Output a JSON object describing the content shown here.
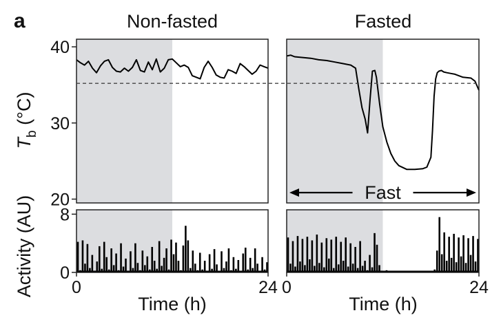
{
  "figure": {
    "panel_letter": "a",
    "colors": {
      "night_shade": "#dcdde0",
      "trace": "#000000",
      "frame": "#222222",
      "threshold": "#444444"
    }
  },
  "chart_data": [
    {
      "id": "tb-nonfasted",
      "type": "line",
      "title": "Non-fasted",
      "ylabel": "Tb (°C)",
      "ylabel_symbol": "T",
      "ylabel_subscript": "b",
      "ylabel_unit": "(°C)",
      "ylim": [
        19.5,
        41
      ],
      "xlim": [
        0,
        24
      ],
      "yticks": [
        20,
        30,
        40
      ],
      "ytick_labels": [
        "20",
        "30",
        "40"
      ],
      "threshold": 35.2,
      "shaded_x": [
        0,
        12
      ],
      "x": [
        0,
        0.5,
        1,
        1.5,
        2,
        2.5,
        3,
        3.5,
        4,
        4.5,
        5,
        5.5,
        6,
        6.5,
        7,
        7.5,
        8,
        8.5,
        9,
        9.5,
        10,
        10.5,
        11,
        11.5,
        12,
        12.5,
        13,
        13.5,
        14,
        14.5,
        15,
        15.5,
        16,
        16.5,
        17,
        17.5,
        18,
        18.5,
        19,
        19.5,
        20,
        20.5,
        21,
        21.5,
        22,
        22.5,
        23,
        23.5,
        24
      ],
      "y": [
        38.3,
        37.9,
        37.6,
        38.1,
        37.2,
        36.6,
        37.5,
        38.1,
        38.3,
        37.3,
        36.8,
        36.7,
        37.2,
        36.8,
        37.3,
        38.3,
        36.9,
        36.7,
        38.0,
        37.0,
        38.4,
        36.7,
        37.2,
        38.3,
        38.4,
        37.9,
        37.4,
        37.6,
        37.3,
        36.2,
        36.0,
        35.8,
        37.3,
        38.1,
        37.3,
        36.3,
        36.0,
        35.9,
        37.0,
        36.8,
        36.5,
        37.8,
        37.4,
        36.9,
        36.4,
        36.8,
        37.6,
        37.4,
        37.2
      ]
    },
    {
      "id": "tb-fasted",
      "type": "line",
      "title": "Fasted",
      "ylim": [
        19.5,
        41
      ],
      "xlim": [
        0,
        24
      ],
      "threshold": 35.2,
      "shaded_x": [
        0,
        12
      ],
      "annotation": "Fast",
      "annotation_span": [
        0,
        24
      ],
      "x": [
        0,
        0.5,
        1,
        2,
        3,
        4,
        5,
        6,
        7,
        8,
        8.6,
        9,
        9.4,
        9.8,
        10.1,
        10.4,
        10.7,
        11,
        11.2,
        11.6,
        12,
        12.5,
        13,
        13.5,
        14,
        15,
        16,
        17,
        17.5,
        18,
        18.2,
        18.4,
        18.6,
        18.8,
        19,
        19.3,
        19.6,
        20,
        20.5,
        21,
        22,
        23,
        23.5,
        24
      ],
      "y": [
        38.8,
        38.9,
        38.7,
        38.6,
        38.5,
        38.3,
        38.2,
        38.0,
        37.8,
        37.6,
        37.2,
        34.5,
        32.0,
        30.5,
        28.7,
        33.0,
        36.8,
        36.9,
        36.0,
        32.5,
        29.5,
        27.5,
        26.0,
        25.0,
        24.4,
        23.9,
        23.9,
        24.0,
        24.2,
        25.5,
        29.0,
        33.5,
        35.8,
        36.6,
        36.8,
        36.9,
        36.7,
        36.6,
        36.5,
        36.4,
        36.0,
        35.9,
        35.5,
        34.3
      ]
    },
    {
      "id": "activity-nonfasted",
      "type": "bar",
      "ylabel": "Activity (AU)",
      "ylim": [
        0,
        8.6
      ],
      "xlim": [
        0,
        24
      ],
      "yticks": [
        0,
        8
      ],
      "ytick_labels": [
        "0",
        "8"
      ],
      "shaded_x": [
        0,
        12
      ],
      "xticks": [
        0,
        24
      ],
      "xtick_labels": [
        "0",
        "24"
      ],
      "xlabel": "Time (h)",
      "x": [
        0,
        0.3,
        0.6,
        0.9,
        1.2,
        1.5,
        1.8,
        2.1,
        2.4,
        2.7,
        3,
        3.3,
        3.6,
        3.9,
        4.2,
        4.5,
        4.8,
        5.1,
        5.4,
        5.7,
        6,
        6.3,
        6.6,
        6.9,
        7.2,
        7.5,
        7.8,
        8.1,
        8.4,
        8.7,
        9,
        9.3,
        9.6,
        9.9,
        10.2,
        10.5,
        10.8,
        11.1,
        11.4,
        11.7,
        12,
        12.3,
        12.6,
        12.9,
        13.2,
        13.5,
        13.8,
        14.1,
        14.4,
        14.7,
        15,
        15.3,
        15.6,
        15.9,
        16.2,
        16.5,
        16.8,
        17.1,
        17.4,
        17.7,
        18,
        18.3,
        18.6,
        18.9,
        19.2,
        19.5,
        19.8,
        20.1,
        20.4,
        20.7,
        21,
        21.3,
        21.6,
        21.9,
        22.2,
        22.5,
        22.8,
        23.1,
        23.4,
        23.7
      ],
      "values": [
        4.2,
        0.3,
        4.4,
        1.2,
        3.9,
        0.6,
        2.4,
        0.2,
        1.5,
        3.6,
        0.5,
        4.2,
        2.1,
        0.4,
        3.3,
        1.0,
        2.6,
        0.3,
        4.0,
        0.8,
        1.9,
        0.2,
        2.9,
        0.6,
        4.0,
        1.3,
        0.3,
        3.0,
        1.0,
        2.2,
        0.4,
        3.5,
        1.6,
        0.5,
        4.3,
        0.9,
        2.0,
        3.3,
        0.4,
        4.5,
        2.5,
        4.1,
        1.6,
        0.3,
        3.7,
        6.4,
        4.4,
        0.6,
        3.0,
        1.2,
        0.3,
        2.7,
        0.4,
        1.6,
        0.2,
        2.5,
        0.5,
        3.2,
        1.1,
        0.2,
        2.9,
        0.6,
        1.5,
        3.3,
        0.3,
        2.1,
        0.5,
        1.7,
        0.2,
        2.6,
        3.4,
        0.4,
        2.0,
        0.6,
        3.3,
        1.2,
        0.2,
        2.1,
        0.4,
        1.4
      ]
    },
    {
      "id": "activity-fasted",
      "type": "bar",
      "ylim": [
        0,
        8.6
      ],
      "xlim": [
        0,
        24
      ],
      "shaded_x": [
        0,
        12
      ],
      "xticks": [
        0,
        24
      ],
      "xtick_labels": [
        "0",
        "24"
      ],
      "xlabel": "Time (h)",
      "x": [
        0,
        0.3,
        0.6,
        0.9,
        1.2,
        1.5,
        1.8,
        2.1,
        2.4,
        2.7,
        3,
        3.3,
        3.6,
        3.9,
        4.2,
        4.5,
        4.8,
        5.1,
        5.4,
        5.7,
        6,
        6.3,
        6.6,
        6.9,
        7.2,
        7.5,
        7.8,
        8.1,
        8.4,
        8.7,
        9,
        9.3,
        9.6,
        9.9,
        10.2,
        10.5,
        10.8,
        11.1,
        11.4,
        11.7,
        12,
        12.3,
        12.6,
        12.9,
        13.2,
        13.5,
        13.8,
        14.1,
        14.4,
        14.7,
        15,
        15.3,
        15.6,
        15.9,
        16.2,
        16.5,
        16.8,
        17.1,
        17.4,
        17.7,
        18,
        18.3,
        18.6,
        18.9,
        19.2,
        19.5,
        19.8,
        20.1,
        20.4,
        20.7,
        21,
        21.3,
        21.6,
        21.9,
        22.2,
        22.5,
        22.8,
        23.1,
        23.4,
        23.7
      ],
      "values": [
        4.8,
        1.2,
        4.3,
        0.8,
        5.0,
        1.5,
        4.6,
        1.0,
        4.9,
        1.8,
        4.4,
        0.9,
        5.2,
        1.3,
        4.1,
        0.7,
        4.7,
        1.9,
        4.5,
        0.6,
        4.9,
        1.1,
        4.2,
        1.6,
        4.8,
        0.8,
        4.0,
        1.2,
        3.5,
        0.6,
        4.3,
        0.9,
        1.6,
        0.3,
        2.4,
        0.7,
        5.4,
        3.8,
        1.0,
        0.2,
        0.1,
        0.3,
        0.2,
        0,
        0,
        0,
        0,
        0,
        0,
        0,
        0,
        0,
        0,
        0,
        0,
        0,
        0,
        0,
        0,
        0,
        0.2,
        0.4,
        3.0,
        7.6,
        2.5,
        5.5,
        1.6,
        4.9,
        2.0,
        5.3,
        1.4,
        4.8,
        2.2,
        5.1,
        1.3,
        4.7,
        2.4,
        5.0,
        1.5,
        4.6
      ]
    }
  ]
}
